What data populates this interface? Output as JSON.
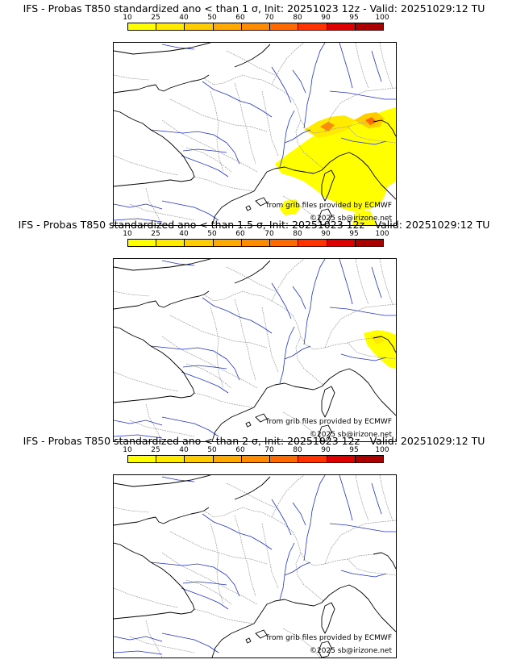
{
  "legend": {
    "ticks": [
      "10",
      "25",
      "40",
      "50",
      "60",
      "70",
      "80",
      "90",
      "95",
      "100"
    ],
    "colors": [
      "#ffff00",
      "#ffea00",
      "#ffcc00",
      "#ffaa00",
      "#ff8c00",
      "#ff6a00",
      "#ff3300",
      "#dd0000",
      "#aa0000",
      "#660000"
    ]
  },
  "panels": [
    {
      "title": "IFS - Probas T850  standardized ano < than 1 σ, Init: 20251023 12z - Valid: 20251029:12 TU",
      "credit_grib": "from grib files provided by ECMWF",
      "credit_copyright": "©2025 sb@irizone.net",
      "anomaly_extent": "large"
    },
    {
      "title": "IFS - Probas T850  standardized ano < than 1.5 σ, Init: 20251023 12z - Valid: 20251029:12 TU",
      "credit_grib": "from grib files provided by ECMWF",
      "credit_copyright": "©2025 sb@irizone.net",
      "anomaly_extent": "small"
    },
    {
      "title": "IFS - Probas T850  standardized ano < than 2 σ, Init: 20251023 12z - Valid: 20251029:12 TU",
      "credit_grib": "from grib files provided by ECMWF",
      "credit_copyright": "©2025 sb@irizone.net",
      "anomaly_extent": "none"
    }
  ],
  "map_colors": {
    "coast": "#000000",
    "rivers": "#2233cc",
    "borders": "#999999"
  }
}
